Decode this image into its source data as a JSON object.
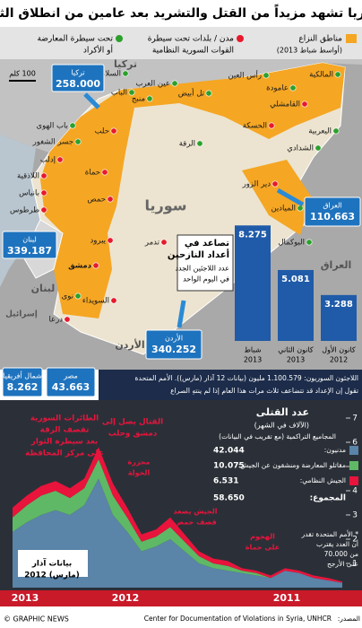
{
  "header": {
    "title": "سوريا تشهد مزيداً من القتل والتشريد بعد عامين من انطلاق الثورة"
  },
  "legend": {
    "conflict": [
      "مناطق النزاع",
      "(أواسط شباط 2013)"
    ],
    "regime": [
      "مدن / بلدات تحت سيطرة",
      "القوات السورية النظامية"
    ],
    "rebel": [
      "تحت سيطرة المعارضة",
      "أو الأكراد"
    ]
  },
  "map": {
    "scale": "100 كلم",
    "countries": [
      "تركيا",
      "سوريا",
      "العراق",
      "لبنان",
      "إسرائيل",
      "الأردن"
    ],
    "places": [
      {
        "label": "المالكية",
        "control": "rebel"
      },
      {
        "label": "رأس العين",
        "control": "rebel"
      },
      {
        "label": "عامودة",
        "control": "rebel"
      },
      {
        "label": "القامشلي",
        "control": "regime"
      },
      {
        "label": "اليعربية",
        "control": "rebel"
      },
      {
        "label": "الشدادي",
        "control": "rebel"
      },
      {
        "label": "الحسكة",
        "control": "regime"
      },
      {
        "label": "تل أبيض",
        "control": "rebel"
      },
      {
        "label": "عين العرب",
        "control": "rebel"
      },
      {
        "label": "منبج",
        "control": "rebel"
      },
      {
        "label": "السلامة",
        "control": "rebel"
      },
      {
        "label": "الباب",
        "control": "rebel"
      },
      {
        "label": "حلب",
        "control": "regime"
      },
      {
        "label": "باب الهوى",
        "control": "rebel"
      },
      {
        "label": "جسر الشغور",
        "control": "rebel"
      },
      {
        "label": "إدلب",
        "control": "regime"
      },
      {
        "label": "اللاذقية",
        "control": "regime"
      },
      {
        "label": "بانياس",
        "control": "regime"
      },
      {
        "label": "طرطوس",
        "control": "regime"
      },
      {
        "label": "حماة",
        "control": "regime"
      },
      {
        "label": "حمص",
        "control": "regime"
      },
      {
        "label": "الرقة",
        "control": "rebel"
      },
      {
        "label": "دير الزور",
        "control": "regime"
      },
      {
        "label": "الميادين",
        "control": "rebel"
      },
      {
        "label": "البوكمال",
        "control": "rebel"
      },
      {
        "label": "تدمر",
        "control": "regime"
      },
      {
        "label": "يبرود",
        "control": "regime"
      },
      {
        "label": "دمشق",
        "control": "regime"
      },
      {
        "label": "نوى",
        "control": "rebel"
      },
      {
        "label": "السويداء",
        "control": "regime"
      },
      {
        "label": "درعا",
        "control": "regime"
      }
    ],
    "refugees": [
      {
        "country": "تركيا",
        "count": "258.000"
      },
      {
        "country": "لبنان",
        "count": "339.187"
      },
      {
        "country": "الأردن",
        "count": "340.252"
      },
      {
        "country": "العراق",
        "count": "110.663"
      },
      {
        "country": "شمال أفريقيا",
        "count": "8.262"
      },
      {
        "country": "مصر",
        "count": "43.663"
      }
    ]
  },
  "bar_chart": {
    "type": "bar",
    "title": [
      "تصاعد في",
      "أعداد النازحين"
    ],
    "subtitle": [
      "عدد اللاجئين الجدد",
      "في اليوم الواحد"
    ],
    "categories": [
      [
        "شباط",
        "2013"
      ],
      [
        "كانون الثاني",
        "2013"
      ],
      [
        "كانون الأول",
        "2012"
      ]
    ],
    "values": [
      8.275,
      5.081,
      3.288
    ],
    "color": "#1f5ba8",
    "ylim": [
      0,
      9
    ]
  },
  "note": [
    "اللاجئون السوريون: 1.100.579 مليون (بيانات 12 آذار (مارس)). الأمم المتحدة",
    "تقول إن الإعداد قد تتضاعف ثلاث مرات هذا العام إذا لم ينتهِ الصراع"
  ],
  "chart_data": {
    "type": "stacked-area",
    "title": "عدد القتلى",
    "subtitle": [
      "(الآلاف في الشهر)",
      "المجاميع التراكمية (مع تقريب في البيانات)"
    ],
    "series": [
      {
        "name": "مدنيون:",
        "total": "42.044",
        "color": "#5a84a8",
        "values": [
          0.2,
          0.3,
          0.4,
          0.6,
          0.7,
          0.4,
          0.5,
          0.6,
          0.7,
          0.8,
          1.0,
          1.5,
          2.0,
          1.7,
          1.5,
          2.3,
          3.0,
          4.5,
          3.4,
          3.0,
          3.2,
          3.0,
          2.7,
          2.3
        ]
      },
      {
        "name": "مقاتلو المعارضة ومنشقون عن الجيش:",
        "total": "10.075",
        "color": "#5fb865",
        "values": [
          0,
          0,
          0,
          0,
          0,
          0,
          0.1,
          0.1,
          0.2,
          0.2,
          0.3,
          0.4,
          0.5,
          0.4,
          0.4,
          0.6,
          0.8,
          0.8,
          0.7,
          0.7,
          0.8,
          0.8,
          0.7,
          0.6
        ]
      },
      {
        "name": "الجيش النظامي:",
        "total": "6.531",
        "color": "#e8143c",
        "values": [
          0.05,
          0.1,
          0.1,
          0.1,
          0.1,
          0.1,
          0.1,
          0.1,
          0.2,
          0.2,
          0.2,
          0.3,
          0.4,
          0.3,
          0.3,
          0.4,
          0.5,
          0.5,
          0.4,
          0.4,
          0.4,
          0.4,
          0.4,
          0.4
        ]
      }
    ],
    "total_label": "المجموع:",
    "total": "58.650",
    "years": [
      "2013",
      "2012",
      "2011"
    ],
    "ylim": [
      0,
      7
    ],
    "yticks": [
      1,
      2,
      3,
      4,
      5,
      6,
      7
    ],
    "annotations": [
      [
        "الطائرات السورية",
        "تقصف الرقة",
        "بعد سيطرة الثوار",
        "على مركز المحافظة"
      ],
      [
        "القتال يصل إلى",
        "دمشق وحلب"
      ],
      [
        "مجزرة",
        "الحولة"
      ],
      [
        "الجيش يصعد",
        "قصف حمص"
      ],
      [
        "الهجوم",
        "على حماة"
      ],
      [
        "بيانات آذار",
        "(مارس) 2012"
      ],
      [
        "* الأمم المتحدة تقدر",
        "أن العدد يقترب",
        "من 70.000",
        "على الأرجح"
      ]
    ]
  },
  "footer": {
    "credit": "© GRAPHIC NEWS",
    "source_label": "المصدر:",
    "source": "Center for Documentation of Violations in Syria, UNHCR"
  }
}
